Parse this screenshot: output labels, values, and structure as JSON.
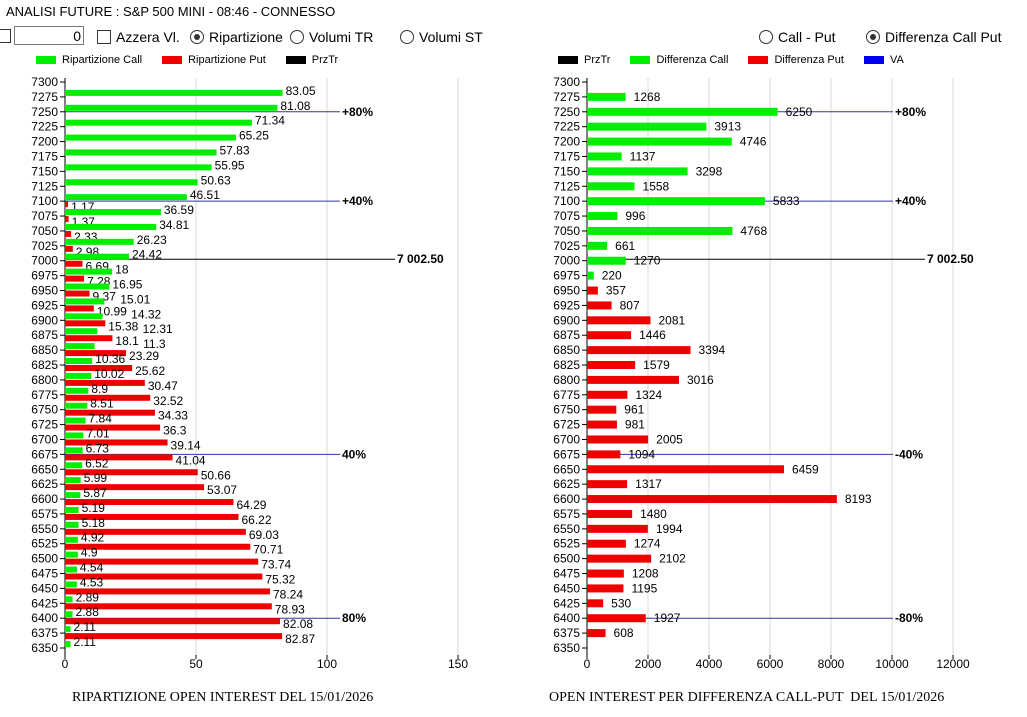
{
  "header": {
    "title": "ANALISI FUTURE : S&P 500 MINI - 08:46 - CONNESSO"
  },
  "controls": {
    "number_value": "0",
    "azzera_label": "Azzera Vl.",
    "ripartizione_label": "Ripartizione",
    "volumi_tr_label": "Volumi TR",
    "volumi_st_label": "Volumi ST",
    "call_put_label": "Call - Put",
    "differenza_label": "Differenza Call Put",
    "selected_left": "Ripartizione",
    "selected_right": "Differenza Call Put"
  },
  "colors": {
    "call": "#00ee00",
    "put": "#ee0000",
    "przTr": "#000000",
    "va": "#0000ee",
    "va_line": "#3333aa",
    "grid": "#d8d8d8"
  },
  "chart_data": [
    {
      "type": "bar",
      "orientation": "horizontal",
      "title": "RIPARTIZIONE OPEN INTEREST DEL 15/01/2026",
      "legend": [
        "Ripartizione Call",
        "Ripartizione Put",
        "PrzTr"
      ],
      "legend_position": "top",
      "xlim": [
        0,
        150
      ],
      "xticks": [
        0,
        50,
        100,
        150
      ],
      "categories": [
        7300,
        7275,
        7250,
        7225,
        7200,
        7175,
        7150,
        7125,
        7100,
        7075,
        7050,
        7025,
        7000,
        6975,
        6950,
        6925,
        6900,
        6875,
        6850,
        6825,
        6800,
        6775,
        6750,
        6725,
        6700,
        6675,
        6650,
        6625,
        6600,
        6575,
        6550,
        6525,
        6500,
        6475,
        6450,
        6425,
        6400,
        6375,
        6350
      ],
      "series": [
        {
          "name": "Ripartizione Call",
          "values": [
            null,
            83.05,
            81.08,
            71.34,
            65.25,
            57.83,
            55.95,
            50.63,
            46.51,
            36.59,
            34.81,
            26.23,
            24.42,
            18,
            16.95,
            15.01,
            14.32,
            12.31,
            11.3,
            10.36,
            10.02,
            8.9,
            8.51,
            7.84,
            7.01,
            6.73,
            6.52,
            5.99,
            5.87,
            5.19,
            5.18,
            4.92,
            4.9,
            4.54,
            4.53,
            2.89,
            2.88,
            2.11,
            2.11
          ]
        },
        {
          "name": "Ripartizione Put",
          "values": [
            null,
            null,
            null,
            null,
            null,
            null,
            null,
            null,
            1.17,
            1.37,
            2.33,
            2.98,
            6.69,
            7.28,
            9.37,
            10.99,
            15.38,
            18.1,
            23.29,
            25.62,
            30.47,
            32.52,
            34.33,
            36.3,
            39.14,
            41.04,
            50.66,
            53.07,
            64.29,
            66.22,
            69.03,
            70.71,
            73.74,
            75.32,
            78.24,
            78.93,
            82.08,
            82.87,
            null
          ]
        }
      ],
      "reference_lines": [
        {
          "strike": 7250,
          "label": "+80%",
          "kind": "va"
        },
        {
          "strike": 7100,
          "label": "+40%",
          "kind": "va"
        },
        {
          "strike": 7002.5,
          "label": "7 002.50",
          "kind": "przTr"
        },
        {
          "strike": 6675,
          "label": "40%",
          "kind": "va"
        },
        {
          "strike": 6400,
          "label": "80%",
          "kind": "va"
        }
      ]
    },
    {
      "type": "bar",
      "orientation": "horizontal",
      "title": "OPEN INTEREST PER DIFFERENZA CALL-PUT  DEL 15/01/2026",
      "legend": [
        "PrzTr",
        "Differenza Call",
        "Differenza Put",
        "VA"
      ],
      "legend_position": "top",
      "xlim": [
        0,
        12000
      ],
      "xticks": [
        0,
        2000,
        4000,
        6000,
        8000,
        10000,
        12000
      ],
      "categories": [
        7300,
        7275,
        7250,
        7225,
        7200,
        7175,
        7150,
        7125,
        7100,
        7075,
        7050,
        7025,
        7000,
        6975,
        6950,
        6925,
        6900,
        6875,
        6850,
        6825,
        6800,
        6775,
        6750,
        6725,
        6700,
        6675,
        6650,
        6625,
        6600,
        6575,
        6550,
        6525,
        6500,
        6475,
        6450,
        6425,
        6400,
        6375,
        6350
      ],
      "series": [
        {
          "name": "Differenza Call",
          "values": [
            null,
            1268,
            6250,
            3913,
            4746,
            1137,
            3298,
            1558,
            5833,
            996,
            4768,
            661,
            1270,
            220,
            null,
            null,
            null,
            null,
            null,
            null,
            null,
            null,
            null,
            null,
            null,
            null,
            null,
            null,
            null,
            null,
            null,
            null,
            null,
            null,
            null,
            null,
            null,
            null,
            null
          ]
        },
        {
          "name": "Differenza Put",
          "values": [
            null,
            null,
            null,
            null,
            null,
            null,
            null,
            null,
            null,
            null,
            null,
            null,
            null,
            null,
            357,
            807,
            2081,
            1446,
            3394,
            1579,
            3016,
            1324,
            961,
            981,
            2005,
            1094,
            6459,
            1317,
            8193,
            1480,
            1994,
            1274,
            2102,
            1208,
            1195,
            530,
            1927,
            608,
            null
          ]
        }
      ],
      "reference_lines": [
        {
          "strike": 7250,
          "label": "+80%",
          "kind": "va"
        },
        {
          "strike": 7100,
          "label": "+40%",
          "kind": "va"
        },
        {
          "strike": 7002.5,
          "label": "7 002.50",
          "kind": "przTr"
        },
        {
          "strike": 6675,
          "label": "-40%",
          "kind": "va"
        },
        {
          "strike": 6400,
          "label": "-80%",
          "kind": "va"
        }
      ]
    }
  ]
}
